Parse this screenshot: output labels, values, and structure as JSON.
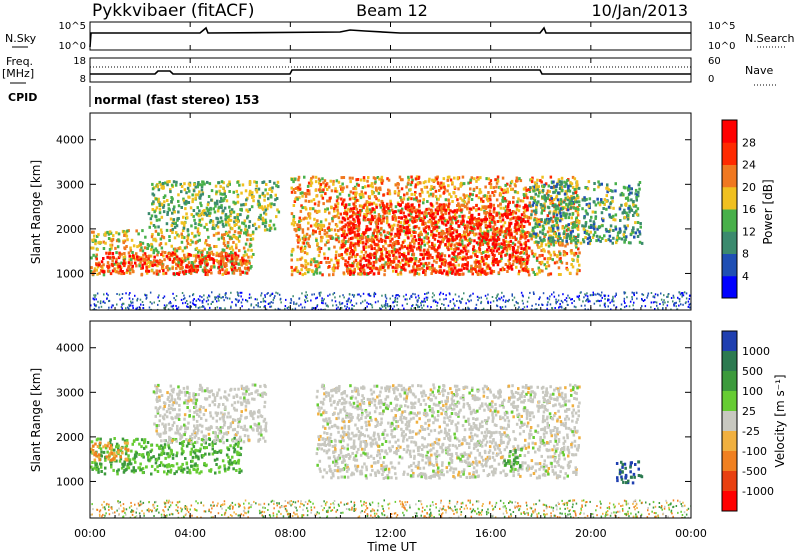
{
  "header": {
    "station": "Pykkvibaer (fitACF)",
    "beam": "Beam 12",
    "date": "10/Jan/2013"
  },
  "top_panels": {
    "nsky_label": "N.Sky",
    "nsky_ticks": [
      "10^5",
      "10^0"
    ],
    "nsearch_ticks": [
      "10^5",
      "10^0"
    ],
    "nsearch_label": "N.Search",
    "freq_label_line1": "Freq.",
    "freq_label_line2": "[MHz]",
    "freq_ticks": [
      "18",
      "8"
    ],
    "nave_ticks": [
      "60",
      "0"
    ],
    "nave_label": "Nave",
    "cpid_label": "CPID",
    "cpid_text": "normal (fast stereo) 153"
  },
  "power_colorbar": {
    "label": "Power [dB]",
    "ticks": [
      "28",
      "24",
      "20",
      "16",
      "12",
      "8",
      "4"
    ],
    "colors": [
      "#0000ff",
      "#1f4fb4",
      "#3b8a6e",
      "#48b04a",
      "#f0c020",
      "#f07820",
      "#ff2a00",
      "#ff0000"
    ]
  },
  "velocity_colorbar": {
    "label": "Velocity [m s⁻¹]",
    "ticks": [
      "1000",
      "500",
      "100",
      "25",
      "-25",
      "-100",
      "-500",
      "-1000"
    ],
    "colors": [
      "#1f3fb0",
      "#2c7a50",
      "#3c9a3c",
      "#66cc33",
      "#c8c8c0",
      "#f0b040",
      "#f08020",
      "#e84010",
      "#ff0000"
    ]
  },
  "x_axis": {
    "label": "Time UT",
    "ticks": [
      "00:00",
      "04:00",
      "08:00",
      "12:00",
      "16:00",
      "20:00",
      "00:00"
    ]
  },
  "y_axis": {
    "label": "Slant Range [km]",
    "ticks": [
      "4000",
      "3000",
      "2000",
      "1000"
    ]
  },
  "chart_data": [
    {
      "type": "heatmap",
      "title": "Power",
      "xlabel": "Time UT",
      "ylabel": "Slant Range [km]",
      "x_range_hours": [
        0,
        24
      ],
      "ylim": [
        180,
        4600
      ],
      "colorbar": "Power [dB]",
      "regions": [
        {
          "t0": 0.0,
          "t1": 6.5,
          "r0": 1000,
          "r1": 2000,
          "value_db": 18
        },
        {
          "t0": 0.2,
          "t1": 6.3,
          "r0": 1000,
          "r1": 1500,
          "value_db": 26
        },
        {
          "t0": 2.3,
          "t1": 7.5,
          "r0": 2000,
          "r1": 3100,
          "value_db": 14
        },
        {
          "t0": 8.0,
          "t1": 19.5,
          "r0": 1000,
          "r1": 3200,
          "value_db": 20
        },
        {
          "t0": 10.0,
          "t1": 17.5,
          "r0": 1000,
          "r1": 2600,
          "value_db": 28
        },
        {
          "t0": 17.5,
          "t1": 22.0,
          "r0": 1700,
          "r1": 3100,
          "value_db": 12
        }
      ]
    },
    {
      "type": "heatmap",
      "title": "Velocity",
      "xlabel": "Time UT",
      "ylabel": "Slant Range [km]",
      "x_range_hours": [
        0,
        24
      ],
      "ylim": [
        180,
        4600
      ],
      "colorbar": "Velocity [m s⁻¹]",
      "regions": [
        {
          "t0": 0.0,
          "t1": 6.0,
          "r0": 1200,
          "r1": 2000,
          "value_ms": 100
        },
        {
          "t0": 0.0,
          "t1": 1.5,
          "r0": 1500,
          "r1": 1900,
          "value_ms": -100
        },
        {
          "t0": 2.5,
          "t1": 7.0,
          "r0": 1900,
          "r1": 3200,
          "value_ms": 0
        },
        {
          "t0": 9.0,
          "t1": 19.5,
          "r0": 1100,
          "r1": 3200,
          "value_ms": 0
        },
        {
          "t0": 16.5,
          "t1": 17.2,
          "r0": 1300,
          "r1": 1800,
          "value_ms": 100
        },
        {
          "t0": 21.0,
          "t1": 22.0,
          "r0": 1000,
          "r1": 1500,
          "value_ms": 1000
        }
      ]
    }
  ]
}
